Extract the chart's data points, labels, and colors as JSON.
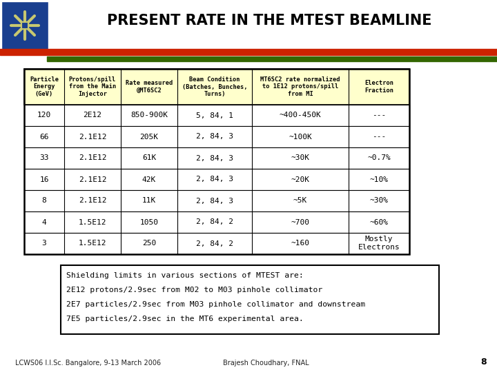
{
  "title": "PRESENT RATE IN THE MTEST BEAMLINE",
  "header": [
    "Particle\nEnergy\n(GeV)",
    "Protons/spill\nfrom the Main\nInjector",
    "Rate measured\n@MT6SC2",
    "Beam Condition\n(Batches, Bunches,\nTurns)",
    "MT6SC2 rate normalized\nto 1E12 protons/spill\nfrom MI",
    "Electron\nFraction"
  ],
  "rows": [
    [
      "120",
      "2E12",
      "850-900K",
      "5, 84, 1",
      "~400-450K",
      "---"
    ],
    [
      "66",
      "2.1E12",
      "205K",
      "2, 84, 3",
      "~100K",
      "---"
    ],
    [
      "33",
      "2.1E12",
      "61K",
      "2, 84, 3",
      "~30K",
      "~0.7%"
    ],
    [
      "16",
      "2.1E12",
      "42K",
      "2, 84, 3",
      "~20K",
      "~10%"
    ],
    [
      "8",
      "2.1E12",
      "11K",
      "2, 84, 3",
      "~5K",
      "~30%"
    ],
    [
      "4",
      "1.5E12",
      "1050",
      "2, 84, 2",
      "~700",
      "~60%"
    ],
    [
      "3",
      "1.5E12",
      "250",
      "2, 84, 2",
      "~160",
      "Mostly\nElectrons"
    ]
  ],
  "note_lines": [
    "Shielding limits in various sections of MTEST are:",
    "2E12 protons/2.9sec from M02 to M03 pinhole collimator",
    "2E7 particles/2.9sec from M03 pinhole collimator and downstream",
    "7E5 particles/2.9sec in the MT6 experimental area."
  ],
  "footer_left": "LCWS06 I.I.Sc. Bangalore, 9-13 March 2006",
  "footer_right": "Brajesh Choudhary, FNAL",
  "page_num": "8",
  "bg_color": "#ffffff",
  "header_bg": "#ffffcc",
  "table_border": "#000000",
  "title_color": "#000000",
  "bar_red": "#cc2200",
  "bar_green": "#336600",
  "logo_blue": "#1a3f8f",
  "logo_green": "#5a8a30"
}
